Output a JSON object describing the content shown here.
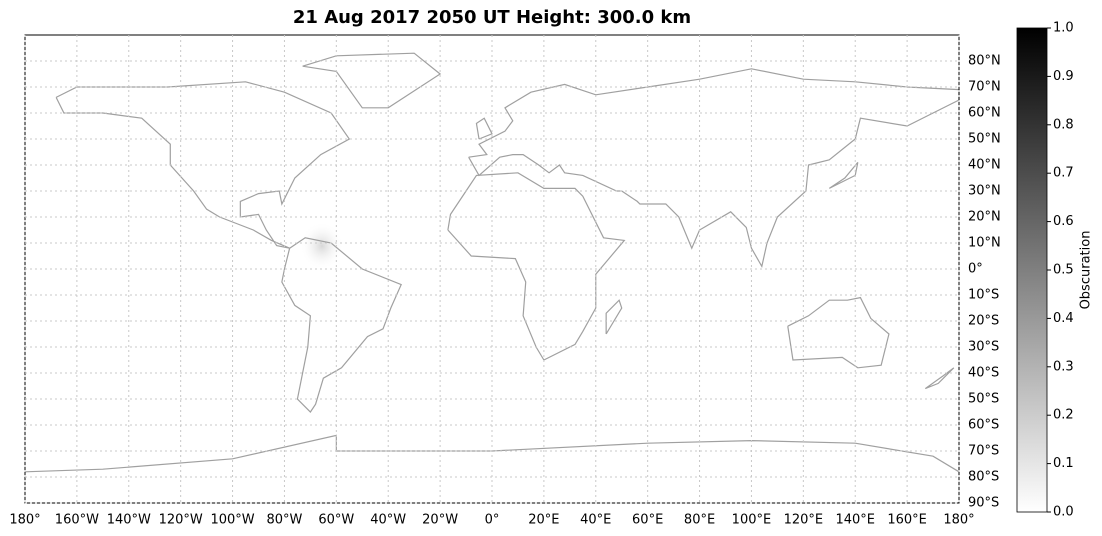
{
  "chart_data": {
    "type": "map",
    "title": "21 Aug 2017 2050 UT Height: 300.0 km",
    "xlim": [
      -180,
      180
    ],
    "ylim": [
      -90,
      90
    ],
    "grid": true,
    "xticks": [
      {
        "value": -180,
        "label": "180°"
      },
      {
        "value": -160,
        "label": "160°W"
      },
      {
        "value": -140,
        "label": "140°W"
      },
      {
        "value": -120,
        "label": "120°W"
      },
      {
        "value": -100,
        "label": "100°W"
      },
      {
        "value": -80,
        "label": "80°W"
      },
      {
        "value": -60,
        "label": "60°W"
      },
      {
        "value": -40,
        "label": "40°W"
      },
      {
        "value": -20,
        "label": "20°W"
      },
      {
        "value": 0,
        "label": "0°"
      },
      {
        "value": 20,
        "label": "20°E"
      },
      {
        "value": 40,
        "label": "40°E"
      },
      {
        "value": 60,
        "label": "60°E"
      },
      {
        "value": 80,
        "label": "80°E"
      },
      {
        "value": 100,
        "label": "100°E"
      },
      {
        "value": 120,
        "label": "120°E"
      },
      {
        "value": 140,
        "label": "140°E"
      },
      {
        "value": 160,
        "label": "160°E"
      },
      {
        "value": 180,
        "label": "180°"
      }
    ],
    "yticks": [
      {
        "value": -90,
        "label": "90°S"
      },
      {
        "value": -80,
        "label": "80°S"
      },
      {
        "value": -70,
        "label": "70°S"
      },
      {
        "value": -60,
        "label": "60°S"
      },
      {
        "value": -50,
        "label": "50°S"
      },
      {
        "value": -40,
        "label": "40°S"
      },
      {
        "value": -30,
        "label": "30°S"
      },
      {
        "value": -20,
        "label": "20°S"
      },
      {
        "value": -10,
        "label": "10°S"
      },
      {
        "value": 0,
        "label": "0°"
      },
      {
        "value": 10,
        "label": "10°N"
      },
      {
        "value": 20,
        "label": "20°N"
      },
      {
        "value": 30,
        "label": "30°N"
      },
      {
        "value": 40,
        "label": "40°N"
      },
      {
        "value": 50,
        "label": "50°N"
      },
      {
        "value": 60,
        "label": "60°N"
      },
      {
        "value": 70,
        "label": "70°N"
      },
      {
        "value": 80,
        "label": "80°N"
      }
    ],
    "colorbar": {
      "label": "Obscuration",
      "lim": [
        0,
        1
      ],
      "ticks": [
        {
          "value": 0,
          "label": "0.0"
        },
        0.1,
        0.2,
        0.3,
        0.4,
        0.5,
        0.6,
        0.7,
        0.8,
        0.9,
        {
          "value": 1,
          "label": "1.0"
        }
      ]
    }
  }
}
